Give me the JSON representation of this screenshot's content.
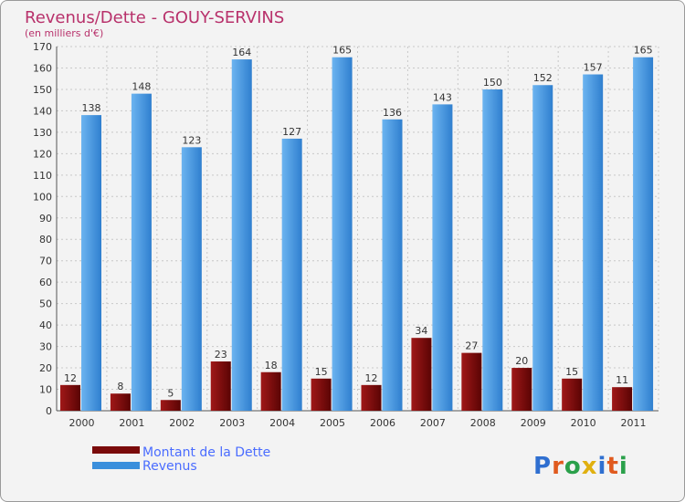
{
  "chart_data": {
    "type": "bar",
    "title": "Revenus/Dette - GOUY-SERVINS",
    "subtitle": "(en milliers d'€)",
    "categories": [
      "2000",
      "2001",
      "2002",
      "2003",
      "2004",
      "2005",
      "2006",
      "2007",
      "2008",
      "2009",
      "2010",
      "2011"
    ],
    "series": [
      {
        "name": "Montant de la Dette",
        "color": "#7a0a0a",
        "values": [
          12,
          8,
          5,
          23,
          18,
          15,
          12,
          34,
          27,
          20,
          15,
          11
        ]
      },
      {
        "name": "Revenus",
        "color": "#3a8fdc",
        "values": [
          138,
          148,
          123,
          164,
          127,
          165,
          136,
          143,
          150,
          152,
          157,
          165
        ]
      }
    ],
    "ylim": [
      0,
      170
    ],
    "yticks": [
      0,
      10,
      20,
      30,
      40,
      50,
      60,
      70,
      80,
      90,
      100,
      110,
      120,
      130,
      140,
      150,
      160,
      170
    ],
    "grid": true,
    "legend": "bottom-left"
  },
  "logo": {
    "letters": [
      "P",
      "r",
      "o",
      "x",
      "i",
      "t",
      "i"
    ],
    "colors": [
      "#2f6fd0",
      "#e05a1e",
      "#2aa04a",
      "#e0b010",
      "#2f6fd0",
      "#e05a1e",
      "#2aa04a"
    ]
  }
}
